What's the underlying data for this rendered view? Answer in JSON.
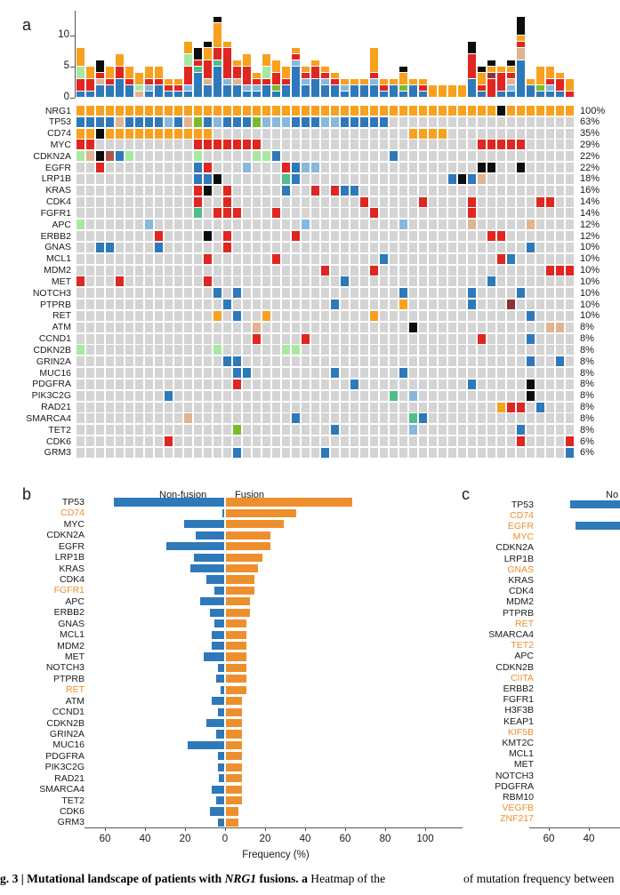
{
  "panel_labels": {
    "a": "a",
    "b": "b",
    "c": "c"
  },
  "palette": {
    "gray": "#D4D4D4",
    "orange": "#F7A11E",
    "blue": "#2E79B9",
    "lightblue": "#88B8DC",
    "red": "#E02620",
    "darkred": "#8E3038",
    "brown": "#B0544A",
    "tan": "#E0B48F",
    "palegreen": "#A8E8A2",
    "yellowgreen": "#7ABB2D",
    "green": "#4FBE8B",
    "black": "#0D0D0D",
    "bar_blue": "#2E79B9",
    "bar_orange": "#EE8F2D",
    "orange_gene_label": "#EE8F2D"
  },
  "chart_data": [
    {
      "id": "a-top-stacked-bars",
      "type": "bar",
      "stacked": true,
      "ylabel": "",
      "yticks": [
        0,
        5,
        10
      ],
      "ylim": [
        0,
        14
      ],
      "legend_position": "none",
      "grid": false,
      "code_colors": {
        "O": "orange",
        "B": "blue",
        "L": "lightblue",
        "R": "red",
        "D": "darkred",
        "W": "brown",
        "T": "tan",
        "P": "palegreen",
        "Y": "yellowgreen",
        "E": "green",
        "K": "black"
      },
      "bars": [
        [
          [
            "B",
            1
          ],
          [
            "R",
            2
          ],
          [
            "P",
            2
          ],
          [
            "O",
            3
          ]
        ],
        [
          [
            "B",
            1
          ],
          [
            "R",
            2
          ],
          [
            "O",
            2
          ]
        ],
        [
          [
            "B",
            2
          ],
          [
            "T",
            1
          ],
          [
            "R",
            1
          ],
          [
            "K",
            2
          ]
        ],
        [
          [
            "B",
            2
          ],
          [
            "R",
            1
          ],
          [
            "O",
            2
          ]
        ],
        [
          [
            "B",
            3
          ],
          [
            "R",
            2
          ],
          [
            "O",
            2
          ]
        ],
        [
          [
            "B",
            2
          ],
          [
            "R",
            1
          ],
          [
            "O",
            2
          ]
        ],
        [
          [
            "T",
            1
          ],
          [
            "P",
            1
          ],
          [
            "O",
            2
          ]
        ],
        [
          [
            "B",
            1
          ],
          [
            "L",
            1
          ],
          [
            "R",
            1
          ],
          [
            "O",
            2
          ]
        ],
        [
          [
            "B",
            2
          ],
          [
            "R",
            1
          ],
          [
            "O",
            2
          ]
        ],
        [
          [
            "B",
            1
          ],
          [
            "R",
            1
          ],
          [
            "O",
            1
          ]
        ],
        [
          [
            "B",
            1
          ],
          [
            "R",
            1
          ],
          [
            "O",
            1
          ]
        ],
        [
          [
            "B",
            1
          ],
          [
            "L",
            1
          ],
          [
            "R",
            3
          ],
          [
            "P",
            2
          ],
          [
            "O",
            2
          ]
        ],
        [
          [
            "B",
            4
          ],
          [
            "E",
            1
          ],
          [
            "R",
            1
          ],
          [
            "K",
            2
          ]
        ],
        [
          [
            "B",
            2
          ],
          [
            "T",
            1
          ],
          [
            "R",
            3
          ],
          [
            "O",
            2
          ],
          [
            "K",
            1
          ]
        ],
        [
          [
            "B",
            5
          ],
          [
            "E",
            1
          ],
          [
            "R",
            2
          ],
          [
            "O",
            4
          ],
          [
            "K",
            1
          ]
        ],
        [
          [
            "B",
            2
          ],
          [
            "L",
            1
          ],
          [
            "R",
            5
          ],
          [
            "O",
            1
          ]
        ],
        [
          [
            "B",
            2
          ],
          [
            "T",
            1
          ],
          [
            "R",
            2
          ],
          [
            "O",
            1
          ]
        ],
        [
          [
            "B",
            1
          ],
          [
            "L",
            1
          ],
          [
            "R",
            3
          ],
          [
            "O",
            2
          ]
        ],
        [
          [
            "B",
            1
          ],
          [
            "L",
            1
          ],
          [
            "R",
            1
          ],
          [
            "O",
            1
          ]
        ],
        [
          [
            "B",
            2
          ],
          [
            "R",
            1
          ],
          [
            "P",
            2
          ],
          [
            "O",
            2
          ]
        ],
        [
          [
            "B",
            1
          ],
          [
            "Y",
            1
          ],
          [
            "R",
            2
          ],
          [
            "O",
            2
          ]
        ],
        [
          [
            "B",
            2
          ],
          [
            "R",
            1
          ],
          [
            "O",
            2
          ]
        ],
        [
          [
            "B",
            5
          ],
          [
            "L",
            1
          ],
          [
            "R",
            1
          ],
          [
            "O",
            1
          ]
        ],
        [
          [
            "B",
            2
          ],
          [
            "L",
            1
          ],
          [
            "R",
            1
          ],
          [
            "O",
            1
          ]
        ],
        [
          [
            "B",
            3
          ],
          [
            "R",
            2
          ],
          [
            "O",
            1
          ]
        ],
        [
          [
            "B",
            2
          ],
          [
            "L",
            1
          ],
          [
            "R",
            1
          ],
          [
            "O",
            1
          ]
        ],
        [
          [
            "B",
            2
          ],
          [
            "R",
            1
          ],
          [
            "O",
            1
          ]
        ],
        [
          [
            "B",
            1
          ],
          [
            "L",
            1
          ],
          [
            "O",
            1
          ]
        ],
        [
          [
            "B",
            2
          ],
          [
            "O",
            1
          ]
        ],
        [
          [
            "B",
            2
          ],
          [
            "O",
            1
          ]
        ],
        [
          [
            "B",
            2
          ],
          [
            "L",
            1
          ],
          [
            "R",
            1
          ],
          [
            "O",
            4
          ]
        ],
        [
          [
            "B",
            1
          ],
          [
            "R",
            1
          ],
          [
            "O",
            1
          ]
        ],
        [
          [
            "B",
            2
          ],
          [
            "O",
            1
          ]
        ],
        [
          [
            "B",
            1
          ],
          [
            "Y",
            1
          ],
          [
            "O",
            2
          ],
          [
            "K",
            1
          ]
        ],
        [
          [
            "B",
            2
          ],
          [
            "O",
            1
          ]
        ],
        [
          [
            "B",
            1
          ],
          [
            "R",
            1
          ],
          [
            "O",
            1
          ]
        ],
        [
          [
            "O",
            2
          ]
        ],
        [
          [
            "O",
            2
          ]
        ],
        [
          [
            "O",
            2
          ]
        ],
        [
          [
            "O",
            2
          ]
        ],
        [
          [
            "B",
            3
          ],
          [
            "R",
            4
          ],
          [
            "K",
            2
          ]
        ],
        [
          [
            "B",
            1
          ],
          [
            "R",
            1
          ],
          [
            "O",
            2
          ],
          [
            "K",
            1
          ]
        ],
        [
          [
            "R",
            3
          ],
          [
            "D",
            1
          ],
          [
            "O",
            1
          ],
          [
            "K",
            1
          ]
        ],
        [
          [
            "B",
            1
          ],
          [
            "R",
            3
          ],
          [
            "O",
            1
          ]
        ],
        [
          [
            "B",
            1
          ],
          [
            "L",
            1
          ],
          [
            "T",
            1
          ],
          [
            "R",
            1
          ],
          [
            "O",
            1
          ],
          [
            "K",
            1
          ]
        ],
        [
          [
            "B",
            6
          ],
          [
            "T",
            2
          ],
          [
            "R",
            1
          ],
          [
            "O",
            1
          ],
          [
            "K",
            3
          ]
        ],
        [
          [
            "B",
            2
          ],
          [
            "O",
            1
          ]
        ],
        [
          [
            "B",
            1
          ],
          [
            "Y",
            1
          ],
          [
            "O",
            3
          ]
        ],
        [
          [
            "B",
            1
          ],
          [
            "L",
            1
          ],
          [
            "R",
            1
          ],
          [
            "O",
            2
          ]
        ],
        [
          [
            "B",
            1
          ],
          [
            "R",
            2
          ],
          [
            "O",
            1
          ]
        ],
        [
          [
            "R",
            1
          ],
          [
            "O",
            2
          ]
        ]
      ]
    },
    {
      "id": "a-oncoprint",
      "type": "heatmap",
      "n_columns": 51,
      "genes": [
        "NRG1",
        "TP53",
        "CD74",
        "MYC",
        "CDKN2A",
        "EGFR",
        "LRP1B",
        "KRAS",
        "CDK4",
        "FGFR1",
        "APC",
        "ERBB2",
        "GNAS",
        "MCL1",
        "MDM2",
        "MET",
        "NOTCH3",
        "PTPRB",
        "RET",
        "ATM",
        "CCND1",
        "CDKN2B",
        "GRIN2A",
        "MUC16",
        "PDGFRA",
        "PIK3C2G",
        "RAD21",
        "SMARCA4",
        "TET2",
        "CDK6",
        "GRM3"
      ],
      "percents": [
        100,
        63,
        35,
        29,
        22,
        22,
        18,
        16,
        14,
        14,
        12,
        12,
        10,
        10,
        10,
        10,
        10,
        10,
        10,
        8,
        8,
        8,
        8,
        8,
        8,
        8,
        8,
        8,
        8,
        6,
        6
      ],
      "code_colors": {
        ".": "gray",
        "O": "orange",
        "B": "blue",
        "L": "lightblue",
        "R": "red",
        "D": "darkred",
        "W": "brown",
        "T": "tan",
        "P": "palegreen",
        "Y": "yellowgreen",
        "E": "green",
        "K": "black"
      },
      "rows": [
        "OOOOOOOOOOOOOOOOOOOOOOOOOOOOOOOOOOOOOOOOOOOKOOOOOOO",
        "BBBBTBBBBLBTYBLBBBYLLLBBBLLBBBBB...................",
        "OOKOOOOOOOOOOO....................OOOO.............",
        "RR..........RRRRRRR......................RRRRR.....",
        "PTKWBP......P.....PPB...........B..................",
        "..R.........BR...L...RBLL................KK..K.....",
        "............BBK......EB...............BKBT.........",
        "............RK.R.....B..R.RBB......................",
        "............R..R.............R.....R....R......RR..",
        "............E.RRR...R.........R.........R..........",
        "P......L...............L.........L......T.....T....",
        "........R....K.R......R...................RR.......",
        "..BB....B......R..............................B....",
        ".............R......R..........B...........RB......",
        ".........................R....R.................RRR",
        "R...R........R.............B..............B........",
        "..............B.B................B......B....B.....",
        "...............B..........B......O......B...D......",
        "..............O.B..O..........O...............B....",
        "..................T...............K.............TT.",
        "..................R....R.................R....B....",
        "P.............P......PP............................",
        "...............BB.............................B..B.",
        "................BB........B......B.................",
        "................R...........B...........B.....K....",
        ".........B......................E.L...........K....",
        "...........................................ORR.B...",
        "...........T..........B...........EB...............",
        "................Y.........B.......L..........B.....",
        ".........R...................................R....R",
        "................B........B........................B"
      ]
    },
    {
      "id": "b-fusion-vs-nonfusion",
      "type": "bar",
      "orientation": "horizontal-diverging",
      "headers": [
        "Non-fusion",
        "Fusion"
      ],
      "xlabel": "Frequency (%)",
      "xticks": [
        60,
        40,
        20,
        0,
        20,
        40,
        60,
        80,
        100
      ],
      "xlim_left": 70,
      "xlim_right": 110,
      "genes": [
        "TP53",
        "CD74",
        "MYC",
        "CDKN2A",
        "EGFR",
        "LRP1B",
        "KRAS",
        "CDK4",
        "FGFR1",
        "APC",
        "ERBB2",
        "GNAS",
        "MCL1",
        "MDM2",
        "MET",
        "NOTCH3",
        "PTPRB",
        "RET",
        "ATM",
        "CCND1",
        "CDKN2B",
        "GRIN2A",
        "MUC16",
        "PDGFRA",
        "PIK3C2G",
        "RAD21",
        "SMARCA4",
        "TET2",
        "CDK6",
        "GRM3"
      ],
      "orange_genes": [
        "CD74",
        "FGFR1",
        "RET"
      ],
      "series": [
        {
          "name": "Non-fusion",
          "color": "bar_blue",
          "values": [
            55,
            1,
            20,
            14,
            29,
            15,
            17,
            9,
            5,
            12,
            7,
            5,
            6,
            6,
            10,
            3,
            4,
            1.5,
            6,
            3,
            9,
            4,
            18,
            3,
            3,
            2.5,
            6,
            4,
            7,
            3
          ]
        },
        {
          "name": "Fusion",
          "color": "bar_orange",
          "values": [
            63,
            35,
            29,
            22,
            22,
            18,
            16,
            14,
            14,
            12,
            12,
            10,
            10,
            10,
            10,
            10,
            10,
            10,
            8,
            8,
            8,
            8,
            8,
            8,
            8,
            8,
            8,
            8,
            6,
            6
          ]
        }
      ]
    },
    {
      "id": "c-comparison-cropped",
      "type": "bar",
      "orientation": "horizontal-diverging",
      "header_visible": "No",
      "xticks_visible": [
        60,
        40
      ],
      "genes": [
        "TP53",
        "CD74",
        "EGFR",
        "MYC",
        "CDKN2A",
        "LRP1B",
        "GNAS",
        "KRAS",
        "CDK4",
        "MDM2",
        "PTPRB",
        "RET",
        "SMARCA4",
        "TET2",
        "APC",
        "CDKN2B",
        "CIITA",
        "ERBB2",
        "FGFR1",
        "H3F3B",
        "KEAP1",
        "KIF5B",
        "KMT2C",
        "MCL1",
        "MET",
        "NOTCH3",
        "PDGFRA",
        "RBM10",
        "VEGFB",
        "ZNF217"
      ],
      "orange_genes": [
        "CD74",
        "EGFR",
        "MYC",
        "GNAS",
        "RET",
        "TET2",
        "CIITA",
        "KIF5B",
        "VEGFB",
        "ZNF217"
      ],
      "visible_bars": [
        {
          "gene": "TP53",
          "series": "Non-fusion",
          "value": 49,
          "color": "bar_blue"
        },
        {
          "gene": "EGFR",
          "series": "Non-fusion",
          "value": 46,
          "color": "bar_blue"
        }
      ]
    }
  ],
  "caption": {
    "left_bold_1": "g. 3 | Mutational landscape of patients with ",
    "left_italic": "NRG1",
    "left_bold_2": " fusions. ",
    "left_bold_3": "a",
    "left_regular": " Heatmap of the",
    "right": "of mutation frequency between"
  }
}
